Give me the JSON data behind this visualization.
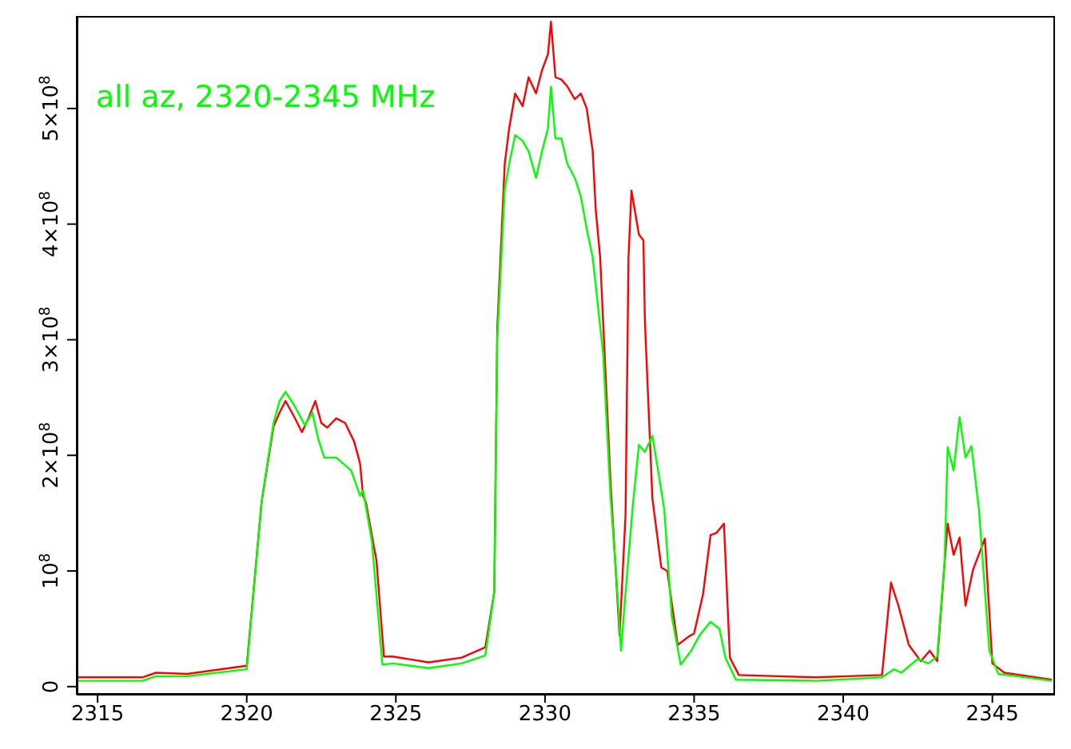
{
  "chart_data": {
    "type": "line",
    "annotations": [
      "all az, 2320-2345 MHz"
    ],
    "xlim": [
      2314.3,
      2347.1
    ],
    "xticks": [
      2315,
      2320,
      2325,
      2330,
      2335,
      2340,
      2345
    ],
    "ylim": [
      -7000000,
      580000000
    ],
    "yticks": [
      0,
      {
        "value": 100000000,
        "label": "10$^{8}$"
      },
      {
        "value": 200000000,
        "label": "2×10$^{8}$"
      },
      {
        "value": 300000000,
        "label": "3×10$^{8}$"
      },
      {
        "value": 400000000,
        "label": "4×10$^{8}$"
      },
      {
        "value": 500000000,
        "label": "5×10$^{8}$"
      }
    ],
    "marker": "none",
    "line_style": "solid",
    "series": [
      {
        "color": "#ff0000",
        "x": [
          2314.3,
          2316.5,
          2316.96,
          2318,
          2320,
          2320.5,
          2320.9,
          2321.1,
          2321.3,
          2321.6,
          2321.85,
          2322.05,
          2322.3,
          2322.5,
          2322.7,
          2323.0,
          2323.3,
          2323.6,
          2323.8,
          2323.9,
          2324.0,
          2324.35,
          2324.6,
          2324.9,
          2326.1,
          2327.2,
          2328.0,
          2328.3,
          2328.4,
          2328.65,
          2328.8,
          2329.0,
          2329.25,
          2329.45,
          2329.7,
          2329.9,
          2330.1,
          2330.2,
          2330.35,
          2330.55,
          2330.75,
          2331.0,
          2331.2,
          2331.4,
          2331.6,
          2331.7,
          2331.85,
          2332.2,
          2332.5,
          2332.7,
          2332.8,
          2332.9,
          2333.15,
          2333.3,
          2333.35,
          2333.6,
          2333.9,
          2334.1,
          2334.45,
          2334.8,
          2335.0,
          2335.3,
          2335.55,
          2335.75,
          2336.0,
          2336.2,
          2336.5,
          2339.1,
          2341.3,
          2341.6,
          2341.85,
          2342.2,
          2342.6,
          2342.9,
          2343.15,
          2343.5,
          2343.7,
          2343.9,
          2344.1,
          2344.35,
          2344.75,
          2345.0,
          2345.4,
          2347.0
        ],
        "values": [
          8000000,
          8000000,
          12000000,
          11000000,
          18000000,
          160000000,
          225000000,
          237000000,
          247000000,
          233000000,
          220000000,
          231000000,
          247000000,
          228000000,
          224000000,
          232000000,
          228000000,
          212000000,
          193000000,
          165000000,
          159000000,
          109000000,
          26000000,
          26000000,
          21000000,
          25000000,
          34000000,
          82000000,
          310000000,
          452000000,
          483000000,
          513000000,
          502000000,
          527000000,
          513000000,
          533000000,
          547000000,
          575000000,
          527000000,
          525000000,
          519000000,
          508000000,
          513000000,
          500000000,
          463000000,
          413000000,
          371000000,
          176000000,
          44000000,
          148000000,
          371000000,
          429000000,
          391000000,
          386000000,
          316000000,
          163000000,
          103000000,
          100000000,
          36000000,
          43000000,
          46000000,
          80000000,
          131000000,
          133000000,
          141000000,
          25000000,
          10000000,
          8000000,
          10000000,
          90000000,
          70000000,
          36000000,
          22000000,
          31000000,
          22000000,
          141000000,
          114000000,
          129000000,
          70000000,
          101000000,
          128000000,
          20000000,
          12000000,
          6000000
        ]
      },
      {
        "color": "#00ff00",
        "x": [
          2314.3,
          2316.5,
          2316.96,
          2318,
          2320,
          2320.5,
          2320.9,
          2321.1,
          2321.3,
          2321.6,
          2321.95,
          2322.2,
          2322.4,
          2322.6,
          2323.0,
          2323.5,
          2323.8,
          2323.9,
          2324.2,
          2324.55,
          2324.9,
          2326.1,
          2327.2,
          2328.0,
          2328.3,
          2328.4,
          2328.65,
          2328.8,
          2329.0,
          2329.25,
          2329.45,
          2329.7,
          2329.9,
          2330.1,
          2330.2,
          2330.35,
          2330.55,
          2330.75,
          2331.0,
          2331.2,
          2331.4,
          2331.6,
          2331.95,
          2332.2,
          2332.4,
          2332.55,
          2332.7,
          2332.95,
          2333.15,
          2333.35,
          2333.6,
          2333.8,
          2334.0,
          2334.25,
          2334.55,
          2334.9,
          2335.2,
          2335.55,
          2335.85,
          2336.05,
          2336.4,
          2339.1,
          2341.3,
          2341.7,
          2341.95,
          2342.5,
          2342.85,
          2343.15,
          2343.4,
          2343.5,
          2343.7,
          2343.9,
          2344.1,
          2344.3,
          2344.55,
          2344.9,
          2345.2,
          2347.0
        ],
        "values": [
          5000000,
          5000000,
          9000000,
          9000000,
          15000000,
          160000000,
          228000000,
          247000000,
          255000000,
          243000000,
          226000000,
          237000000,
          214000000,
          198000000,
          198000000,
          187000000,
          165000000,
          170000000,
          125000000,
          19000000,
          20000000,
          16000000,
          20000000,
          27000000,
          82000000,
          300000000,
          430000000,
          452000000,
          477000000,
          472000000,
          463000000,
          440000000,
          463000000,
          483000000,
          519000000,
          474000000,
          474000000,
          452000000,
          440000000,
          424000000,
          396000000,
          371000000,
          288000000,
          163000000,
          92000000,
          31000000,
          81000000,
          158000000,
          209000000,
          203000000,
          217000000,
          186000000,
          153000000,
          61000000,
          19000000,
          31000000,
          45000000,
          56000000,
          50000000,
          25000000,
          6000000,
          5000000,
          8000000,
          15000000,
          12000000,
          24000000,
          20000000,
          26000000,
          109000000,
          207000000,
          187000000,
          233000000,
          198000000,
          208000000,
          153000000,
          31000000,
          11000000,
          5000000
        ]
      }
    ]
  }
}
